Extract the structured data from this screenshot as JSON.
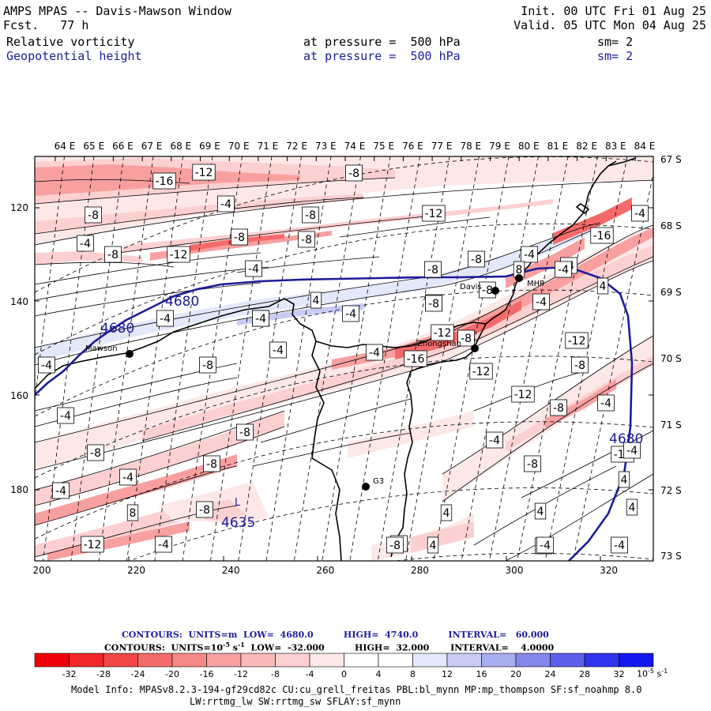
{
  "header": {
    "title": "AMPS MPAS -- Davis-Mawson Window",
    "fcst_label": "Fcst.",
    "fcst_value": "77 h",
    "init": "Init. 00 UTC Fri 01 Aug 25",
    "valid": "Valid. 05 UTC Mon 04 Aug 25",
    "field1": {
      "name": "Relative vorticity",
      "level": "at pressure =  500 hPa",
      "sm": "sm= 2"
    },
    "field2": {
      "name": "Geopotential height",
      "level": "at pressure =  500 hPa",
      "sm": "sm= 2"
    }
  },
  "colors": {
    "red": "#f0000a",
    "pink_dark": "#f46a6a",
    "pink_mid": "#f8a0a0",
    "pink_light": "#fcd0d0",
    "pink_faint": "#fde8e8",
    "blue_faint": "#e4e8fb",
    "blue_light": "#c8ccf4",
    "navy": "#1c1c9a"
  },
  "map": {
    "lon_labels": [
      "64 E",
      "65 E",
      "66 E",
      "67 E",
      "68 E",
      "69 E",
      "70 E",
      "71 E",
      "72 E",
      "73 E",
      "74 E",
      "75 E",
      "76 E",
      "77 E",
      "78 E",
      "79 E",
      "80 E",
      "81 E",
      "82 E",
      "83 E",
      "84 E"
    ],
    "lat_labels": [
      "67 S",
      "68 S",
      "69 S",
      "70 S",
      "71 S",
      "72 S",
      "73 S"
    ],
    "x_labels": [
      "200",
      "220",
      "240",
      "260",
      "280",
      "300",
      "320"
    ],
    "y_labels": [
      "120",
      "140",
      "160",
      "180"
    ],
    "stations": [
      {
        "name": "Mawson"
      },
      {
        "name": "Davis"
      },
      {
        "name": "Zhongshan"
      },
      {
        "name": "MHP"
      },
      {
        "name": "G3"
      }
    ],
    "height_labels": [
      "4680",
      "4680",
      "4680",
      "4635"
    ],
    "low_marker": "L",
    "vort_labels": [
      "-12",
      "-16",
      "-8",
      "-4",
      "-8",
      "-8",
      "-12",
      "-8",
      "-4",
      "-8",
      "-4",
      "-16",
      "-8",
      "-12",
      "-4",
      "-8",
      "-4",
      "-4",
      "-8",
      "8",
      "4",
      "4",
      "-4",
      "-12",
      "-16",
      "-12",
      "-4",
      "-4",
      "-8",
      "-12",
      "-8",
      "-12",
      "-4",
      "-4",
      "-8",
      "-4",
      "-4",
      "-8",
      "-4",
      "-8",
      "-12",
      "-8",
      "-8",
      "4",
      "-4",
      "-4",
      "4",
      "8",
      "-8",
      "4",
      "-4",
      "-4",
      "-4",
      "-12",
      "-4",
      "4",
      "4",
      "-4",
      "-4",
      "-8",
      "-4",
      "-8",
      "-4",
      "-8",
      "-4",
      "-4",
      "-8",
      "-4"
    ]
  },
  "contours_info": {
    "line1": "CONTOURS:  UNITS=m  LOW=  4680.0          HIGH=  4740.0          INTERVAL=   60.000",
    "line2_a": "CONTOURS:  UNITS=10",
    "line2_exp": "-5",
    "line2_b": " s",
    "line2_exp2": "-1",
    "line2_c": "  LOW=  -32.000          HIGH=  32.000       INTERVAL=    4.0000"
  },
  "colorbar": {
    "labels": [
      "-32",
      "-28",
      "-24",
      "-20",
      "-16",
      "-12",
      "-8",
      "-4",
      "0",
      "4",
      "8",
      "12",
      "16",
      "20",
      "24",
      "28",
      "32"
    ],
    "units_base": "10",
    "units_exp": "-5",
    "units_s": "s",
    "units_exp2": "-1",
    "colors": [
      "#f0000a",
      "#f22828",
      "#f44848",
      "#f46a6a",
      "#f68888",
      "#f8a0a0",
      "#fab8b8",
      "#fcd0d0",
      "#fde8e8",
      "#ffffff",
      "#ffffff",
      "#e4e8fb",
      "#c8ccf4",
      "#a8acf0",
      "#8488ec",
      "#5c60ea",
      "#3034ee",
      "#1418f0"
    ]
  },
  "model_info": {
    "line1": "Model Info: MPASv8.2.3-194-gf29cd82c CU:cu_grell_freitas PBL:bl_mynn MP:mp_thompson SF:sf_noahmp 8.0",
    "line2": "LW:rrtmg_lw SW:rrtmg_sw SFLAY:sf_mynn"
  }
}
